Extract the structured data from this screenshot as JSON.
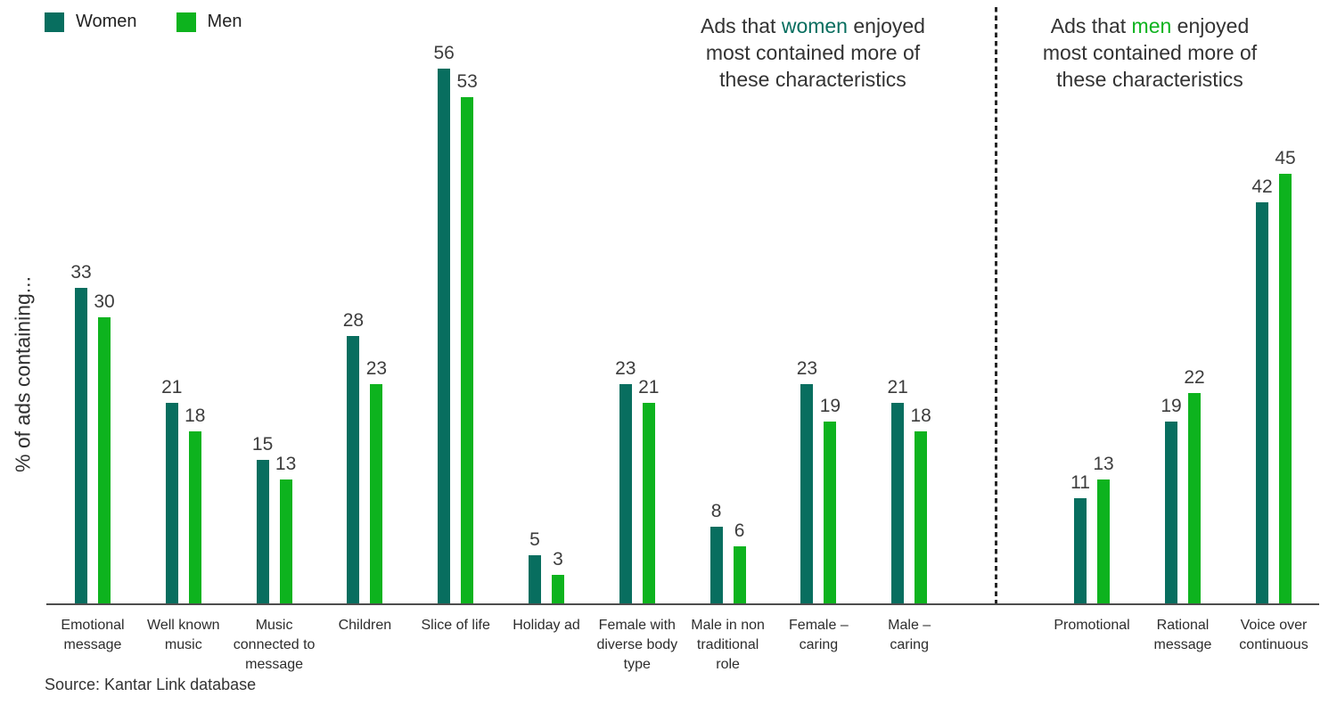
{
  "legend": {
    "items": [
      {
        "label": "Women",
        "color": "#086e5f"
      },
      {
        "label": "Men",
        "color": "#0db31e"
      }
    ]
  },
  "ylabel": "% of ads containing...",
  "annotation_left": {
    "line1_pre": "Ads that ",
    "line1_word": "women",
    "line1_post": " enjoyed",
    "line2": "most contained more of",
    "line3": "these characteristics",
    "word_color": "#086e5f"
  },
  "annotation_right": {
    "line1_pre": "Ads that ",
    "line1_word": "men",
    "line1_post": " enjoyed",
    "line2": "most contained more of",
    "line3": "these characteristics",
    "word_color": "#0db31e"
  },
  "source": "Source: Kantar Link database",
  "chart_data": {
    "type": "bar",
    "title": "",
    "xlabel": "",
    "ylabel": "% of ads containing...",
    "ylim": [
      0,
      60
    ],
    "grid": false,
    "legend_position": "top-left",
    "series": [
      {
        "name": "Women",
        "color": "#086e5f"
      },
      {
        "name": "Men",
        "color": "#0db31e"
      }
    ],
    "sections": [
      {
        "annotation": "Ads that women enjoyed most contained more of these characteristics",
        "categories": [
          "Emotional message",
          "Well known music",
          "Music connected to message",
          "Children",
          "Slice of life",
          "Holiday ad",
          "Female with diverse body type",
          "Male in non traditional role",
          "Female – caring",
          "Male – caring"
        ],
        "women": [
          33,
          21,
          15,
          28,
          56,
          5,
          23,
          8,
          23,
          21
        ],
        "men": [
          30,
          18,
          13,
          23,
          53,
          3,
          21,
          6,
          19,
          18
        ]
      },
      {
        "annotation": "Ads that men enjoyed most contained more of these characteristics",
        "categories": [
          "Promotional",
          "Rational message",
          "Voice over continuous"
        ],
        "women": [
          11,
          19,
          42
        ],
        "men": [
          13,
          22,
          45
        ]
      }
    ]
  }
}
